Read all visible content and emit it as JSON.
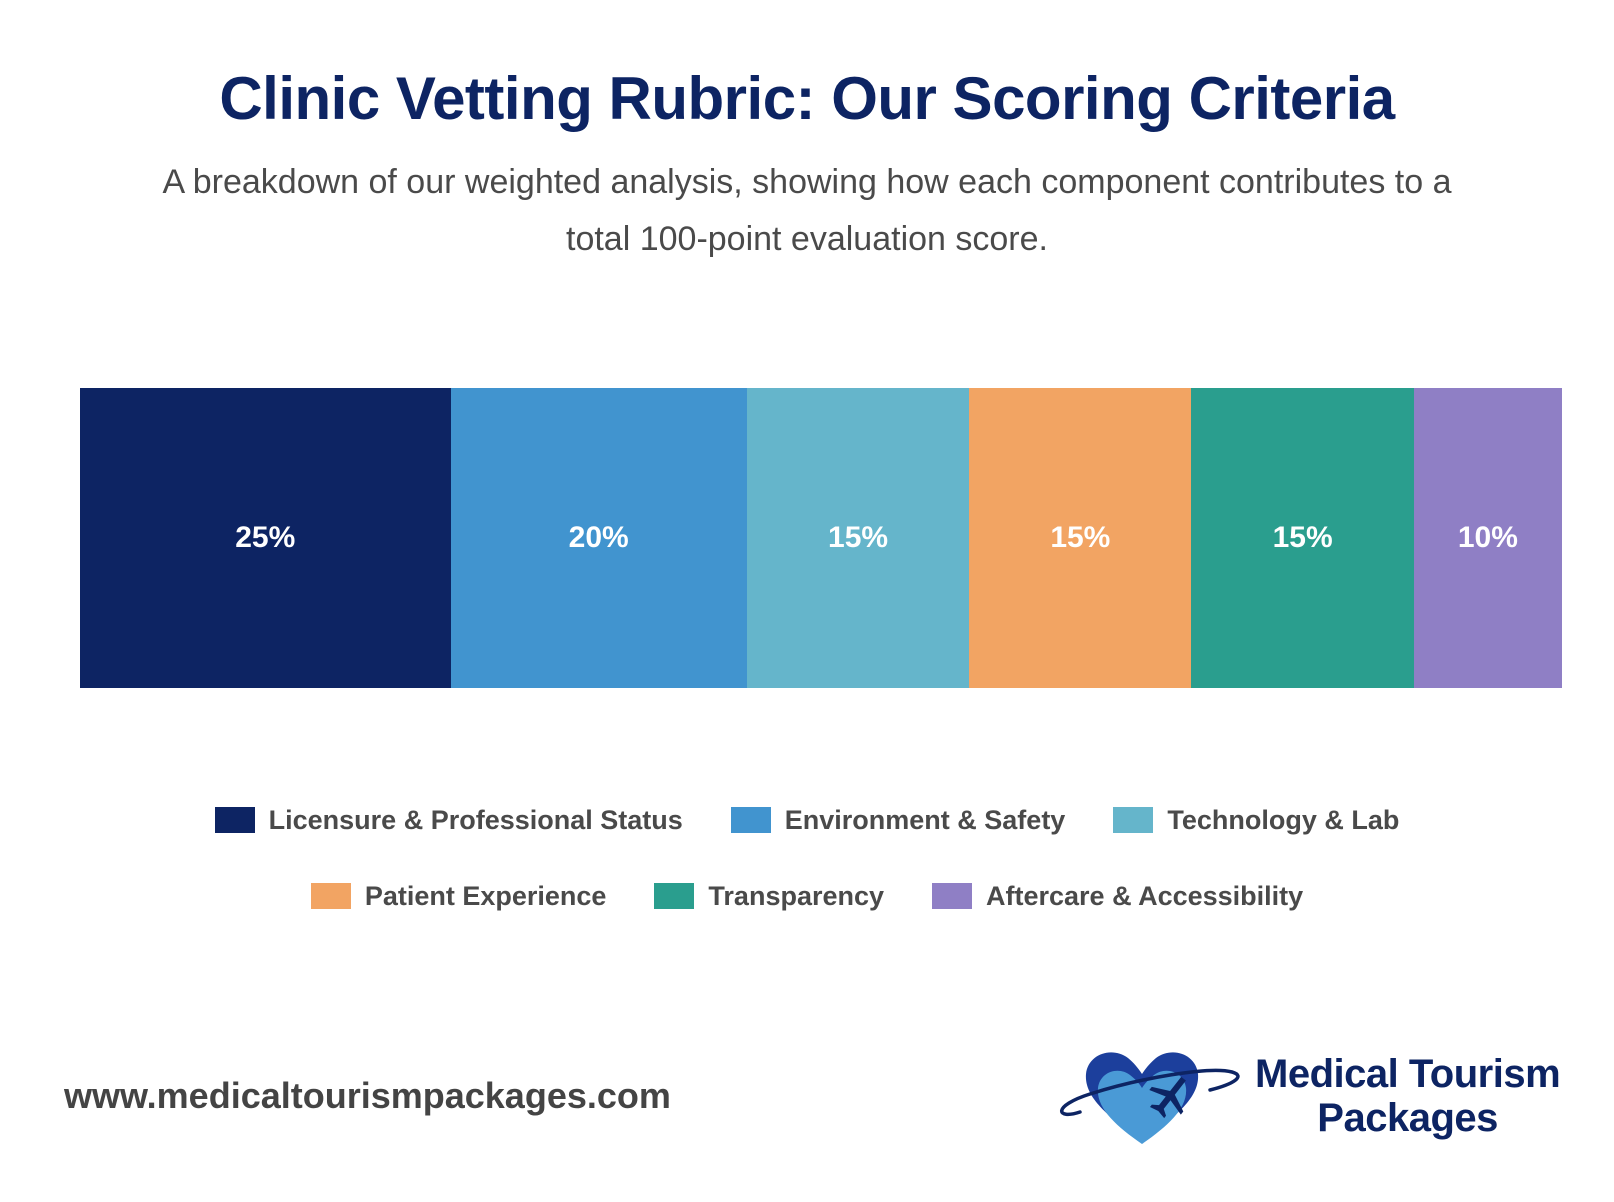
{
  "title": "Clinic Vetting Rubric: Our Scoring Criteria",
  "subtitle": "A breakdown of our weighted analysis, showing how each component contributes to a total 100-point evaluation score.",
  "chart_data": {
    "type": "bar",
    "orientation": "horizontal-stacked",
    "categories": [
      "Licensure & Professional Status",
      "Environment & Safety",
      "Technology & Lab",
      "Patient Experience",
      "Transparency",
      "Aftercare & Accessibility"
    ],
    "values": [
      25,
      20,
      15,
      15,
      15,
      10
    ],
    "value_labels": [
      "25%",
      "20%",
      "15%",
      "15%",
      "15%",
      "10%"
    ],
    "colors": [
      "#0d2463",
      "#4194cf",
      "#65b5cb",
      "#f2a463",
      "#2a9e8e",
      "#8f7fc5"
    ],
    "total": 100,
    "legend_placement": "bottom",
    "grid": false
  },
  "legend_rows": [
    [
      0,
      1,
      2
    ],
    [
      3,
      4,
      5
    ]
  ],
  "footer": {
    "url": "www.medicaltourismpackages.com",
    "brand_line1": "Medical Tourism",
    "brand_line2": "Packages"
  },
  "logo_icon": "heart-airplane-icon"
}
